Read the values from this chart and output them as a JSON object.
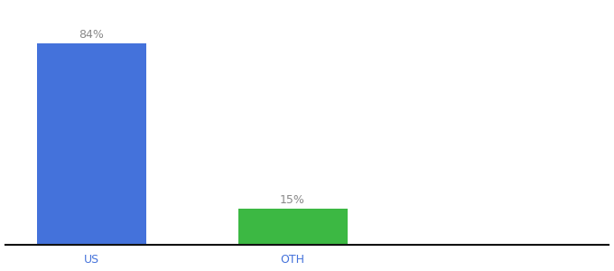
{
  "categories": [
    "US",
    "OTH"
  ],
  "values": [
    84,
    15
  ],
  "bar_colors": [
    "#4472db",
    "#3cb843"
  ],
  "label_texts": [
    "84%",
    "15%"
  ],
  "background_color": "#ffffff",
  "ylim": [
    0,
    100
  ],
  "bar_width": 0.38,
  "label_fontsize": 9,
  "tick_fontsize": 9,
  "bar_positions": [
    0,
    0.7
  ],
  "xlim": [
    -0.3,
    1.8
  ],
  "label_color": "#888888",
  "tick_color": "#4472db"
}
